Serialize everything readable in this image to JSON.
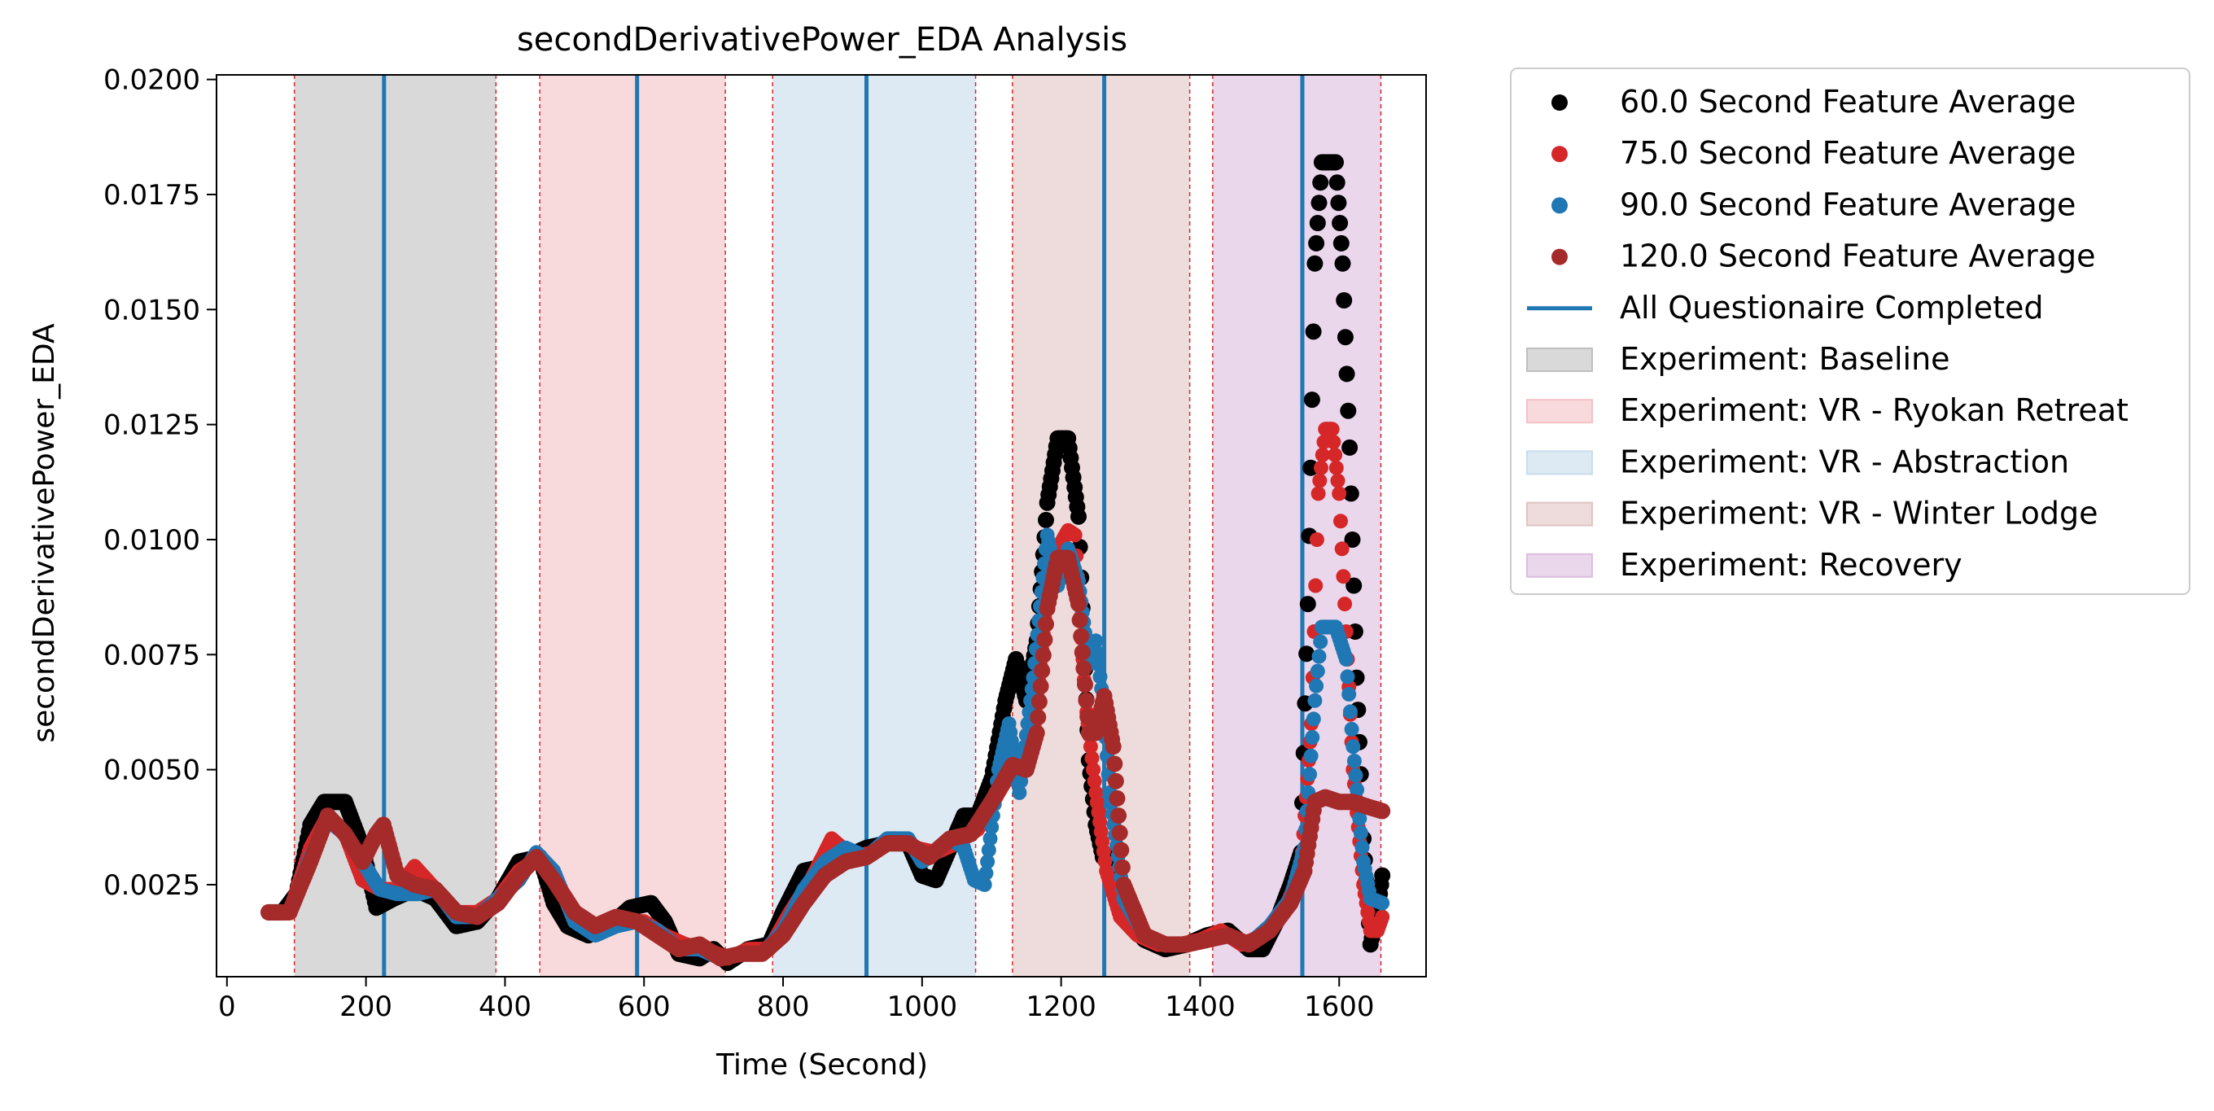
{
  "chart_data": {
    "type": "scatter",
    "title": "secondDerivativePower_EDA Analysis",
    "xlabel": "Time (Second)",
    "ylabel": "secondDerivativePower_EDA",
    "xlim": [
      -15,
      1725
    ],
    "ylim": [
      0.0005,
      0.0201
    ],
    "xticks": [
      0,
      200,
      400,
      600,
      800,
      1000,
      1200,
      1400,
      1600
    ],
    "xtick_labels": [
      "0",
      "200",
      "400",
      "600",
      "800",
      "1000",
      "1200",
      "1400",
      "1600"
    ],
    "yticks": [
      0.0025,
      0.005,
      0.0075,
      0.01,
      0.0125,
      0.015,
      0.0175,
      0.02
    ],
    "ytick_labels": [
      "0.0025",
      "0.0050",
      "0.0075",
      "0.0100",
      "0.0125",
      "0.0150",
      "0.0175",
      "0.0200"
    ],
    "grid": false,
    "legend_position": "outside-right",
    "phases": [
      {
        "name": "Experiment: Baseline",
        "start": 97,
        "end": 387,
        "color": "#bfbfbf"
      },
      {
        "name": "Experiment: VR - Ryokan Retreat",
        "start": 450,
        "end": 717,
        "color": "#f4c2c5"
      },
      {
        "name": "Experiment: VR - Abstraction",
        "start": 785,
        "end": 1077,
        "color": "#c7dced"
      },
      {
        "name": "Experiment: VR - Winter Lodge",
        "start": 1130,
        "end": 1385,
        "color": "#e2c3c3"
      },
      {
        "name": "Experiment: Recovery",
        "start": 1418,
        "end": 1660,
        "color": "#dcbde0"
      }
    ],
    "questionnaire": {
      "name": "All Questionaire Completed",
      "x": [
        226,
        590,
        920,
        1262,
        1547
      ],
      "color": "#1f77b4"
    },
    "series": [
      {
        "name": "60.0 Second Feature Average",
        "color": "#000000",
        "points": [
          [
            60,
            0.0019
          ],
          [
            80,
            0.0019
          ],
          [
            100,
            0.0023
          ],
          [
            120,
            0.0038
          ],
          [
            140,
            0.0043
          ],
          [
            170,
            0.0043
          ],
          [
            195,
            0.0033
          ],
          [
            215,
            0.002
          ],
          [
            240,
            0.0022
          ],
          [
            270,
            0.0024
          ],
          [
            300,
            0.0022
          ],
          [
            330,
            0.0016
          ],
          [
            360,
            0.0017
          ],
          [
            390,
            0.0022
          ],
          [
            420,
            0.003
          ],
          [
            450,
            0.0031
          ],
          [
            470,
            0.0021
          ],
          [
            490,
            0.0016
          ],
          [
            520,
            0.0014
          ],
          [
            550,
            0.0016
          ],
          [
            580,
            0.002
          ],
          [
            610,
            0.0021
          ],
          [
            630,
            0.0017
          ],
          [
            650,
            0.001
          ],
          [
            680,
            0.0009
          ],
          [
            700,
            0.0011
          ],
          [
            720,
            0.0008
          ],
          [
            750,
            0.0011
          ],
          [
            780,
            0.0012
          ],
          [
            800,
            0.0019
          ],
          [
            830,
            0.0028
          ],
          [
            860,
            0.0029
          ],
          [
            890,
            0.0031
          ],
          [
            920,
            0.0033
          ],
          [
            950,
            0.0034
          ],
          [
            980,
            0.0034
          ],
          [
            1000,
            0.0027
          ],
          [
            1020,
            0.0026
          ],
          [
            1040,
            0.0033
          ],
          [
            1060,
            0.004
          ],
          [
            1080,
            0.004
          ],
          [
            1100,
            0.0048
          ],
          [
            1120,
            0.0065
          ],
          [
            1135,
            0.0074
          ],
          [
            1150,
            0.0065
          ],
          [
            1165,
            0.0078
          ],
          [
            1180,
            0.0108
          ],
          [
            1195,
            0.0122
          ],
          [
            1210,
            0.0122
          ],
          [
            1225,
            0.0105
          ],
          [
            1240,
            0.0052
          ],
          [
            1250,
            0.0038
          ],
          [
            1260,
            0.0031
          ],
          [
            1270,
            0.0031
          ],
          [
            1290,
            0.0018
          ],
          [
            1320,
            0.0013
          ],
          [
            1350,
            0.0011
          ],
          [
            1380,
            0.0012
          ],
          [
            1410,
            0.0014
          ],
          [
            1440,
            0.0015
          ],
          [
            1470,
            0.0011
          ],
          [
            1490,
            0.0011
          ],
          [
            1510,
            0.0017
          ],
          [
            1530,
            0.0025
          ],
          [
            1545,
            0.0032
          ],
          [
            1555,
            0.0086
          ],
          [
            1565,
            0.016
          ],
          [
            1575,
            0.0182
          ],
          [
            1595,
            0.0182
          ],
          [
            1605,
            0.016
          ],
          [
            1615,
            0.012
          ],
          [
            1625,
            0.007
          ],
          [
            1635,
            0.0035
          ],
          [
            1645,
            0.0012
          ],
          [
            1655,
            0.0019
          ],
          [
            1662,
            0.0027
          ]
        ]
      },
      {
        "name": "75.0 Second Feature Average",
        "color": "#d62728",
        "points": [
          [
            60,
            0.0019
          ],
          [
            90,
            0.0019
          ],
          [
            120,
            0.0033
          ],
          [
            145,
            0.004
          ],
          [
            170,
            0.0036
          ],
          [
            195,
            0.0026
          ],
          [
            220,
            0.0024
          ],
          [
            245,
            0.0024
          ],
          [
            270,
            0.0029
          ],
          [
            300,
            0.0024
          ],
          [
            330,
            0.0019
          ],
          [
            360,
            0.0019
          ],
          [
            390,
            0.0022
          ],
          [
            420,
            0.0028
          ],
          [
            450,
            0.0031
          ],
          [
            480,
            0.0024
          ],
          [
            510,
            0.0017
          ],
          [
            540,
            0.0015
          ],
          [
            570,
            0.0017
          ],
          [
            600,
            0.0017
          ],
          [
            630,
            0.0014
          ],
          [
            660,
            0.0012
          ],
          [
            690,
            0.0011
          ],
          [
            720,
            0.0009
          ],
          [
            750,
            0.0011
          ],
          [
            780,
            0.0011
          ],
          [
            810,
            0.0019
          ],
          [
            840,
            0.0026
          ],
          [
            870,
            0.0035
          ],
          [
            900,
            0.0031
          ],
          [
            930,
            0.0032
          ],
          [
            960,
            0.0035
          ],
          [
            990,
            0.0033
          ],
          [
            1020,
            0.0032
          ],
          [
            1050,
            0.0034
          ],
          [
            1080,
            0.0037
          ],
          [
            1110,
            0.0045
          ],
          [
            1130,
            0.005
          ],
          [
            1150,
            0.0052
          ],
          [
            1165,
            0.0062
          ],
          [
            1180,
            0.009
          ],
          [
            1195,
            0.0098
          ],
          [
            1210,
            0.0102
          ],
          [
            1220,
            0.0101
          ],
          [
            1235,
            0.0065
          ],
          [
            1250,
            0.0045
          ],
          [
            1265,
            0.0028
          ],
          [
            1285,
            0.0018
          ],
          [
            1310,
            0.0014
          ],
          [
            1340,
            0.0012
          ],
          [
            1370,
            0.0012
          ],
          [
            1400,
            0.0013
          ],
          [
            1430,
            0.0015
          ],
          [
            1460,
            0.0012
          ],
          [
            1490,
            0.0014
          ],
          [
            1520,
            0.0019
          ],
          [
            1545,
            0.0028
          ],
          [
            1560,
            0.006
          ],
          [
            1570,
            0.011
          ],
          [
            1580,
            0.0124
          ],
          [
            1590,
            0.0124
          ],
          [
            1600,
            0.011
          ],
          [
            1610,
            0.008
          ],
          [
            1620,
            0.005
          ],
          [
            1635,
            0.0025
          ],
          [
            1645,
            0.0015
          ],
          [
            1655,
            0.0015
          ],
          [
            1662,
            0.0018
          ]
        ]
      },
      {
        "name": "90.0 Second Feature Average",
        "color": "#1f77b4",
        "points": [
          [
            60,
            0.0019
          ],
          [
            90,
            0.0019
          ],
          [
            120,
            0.0031
          ],
          [
            145,
            0.0039
          ],
          [
            170,
            0.0036
          ],
          [
            195,
            0.003
          ],
          [
            220,
            0.0024
          ],
          [
            245,
            0.0023
          ],
          [
            275,
            0.0023
          ],
          [
            300,
            0.0024
          ],
          [
            330,
            0.0018
          ],
          [
            360,
            0.0018
          ],
          [
            390,
            0.0022
          ],
          [
            420,
            0.0026
          ],
          [
            445,
            0.0032
          ],
          [
            470,
            0.0028
          ],
          [
            500,
            0.0017
          ],
          [
            530,
            0.0014
          ],
          [
            560,
            0.0016
          ],
          [
            590,
            0.0017
          ],
          [
            620,
            0.0015
          ],
          [
            650,
            0.0011
          ],
          [
            680,
            0.0011
          ],
          [
            710,
            0.0009
          ],
          [
            740,
            0.001
          ],
          [
            770,
            0.001
          ],
          [
            800,
            0.0015
          ],
          [
            830,
            0.0024
          ],
          [
            860,
            0.003
          ],
          [
            890,
            0.0033
          ],
          [
            920,
            0.0031
          ],
          [
            950,
            0.0035
          ],
          [
            980,
            0.0035
          ],
          [
            1000,
            0.003
          ],
          [
            1020,
            0.0032
          ],
          [
            1040,
            0.0035
          ],
          [
            1060,
            0.0033
          ],
          [
            1075,
            0.0026
          ],
          [
            1090,
            0.0025
          ],
          [
            1110,
            0.005
          ],
          [
            1125,
            0.006
          ],
          [
            1140,
            0.0045
          ],
          [
            1160,
            0.007
          ],
          [
            1180,
            0.0101
          ],
          [
            1195,
            0.009
          ],
          [
            1210,
            0.0098
          ],
          [
            1225,
            0.0091
          ],
          [
            1240,
            0.0073
          ],
          [
            1250,
            0.0078
          ],
          [
            1260,
            0.0065
          ],
          [
            1270,
            0.0045
          ],
          [
            1290,
            0.0022
          ],
          [
            1320,
            0.0014
          ],
          [
            1350,
            0.0012
          ],
          [
            1380,
            0.0012
          ],
          [
            1410,
            0.0013
          ],
          [
            1440,
            0.0014
          ],
          [
            1470,
            0.0012
          ],
          [
            1500,
            0.0016
          ],
          [
            1530,
            0.0022
          ],
          [
            1550,
            0.0033
          ],
          [
            1565,
            0.0065
          ],
          [
            1575,
            0.0081
          ],
          [
            1595,
            0.0081
          ],
          [
            1610,
            0.0074
          ],
          [
            1620,
            0.0055
          ],
          [
            1635,
            0.003
          ],
          [
            1645,
            0.0022
          ],
          [
            1662,
            0.0021
          ]
        ]
      },
      {
        "name": "120.0 Second Feature Average",
        "color": "#a52a2a",
        "points": [
          [
            60,
            0.0019
          ],
          [
            90,
            0.0019
          ],
          [
            120,
            0.003
          ],
          [
            145,
            0.004
          ],
          [
            170,
            0.0036
          ],
          [
            195,
            0.003
          ],
          [
            215,
            0.0036
          ],
          [
            225,
            0.0038
          ],
          [
            245,
            0.0027
          ],
          [
            270,
            0.0025
          ],
          [
            300,
            0.0024
          ],
          [
            330,
            0.0019
          ],
          [
            360,
            0.0018
          ],
          [
            390,
            0.0021
          ],
          [
            420,
            0.0027
          ],
          [
            445,
            0.0031
          ],
          [
            470,
            0.0026
          ],
          [
            500,
            0.0019
          ],
          [
            530,
            0.0016
          ],
          [
            560,
            0.0018
          ],
          [
            590,
            0.0017
          ],
          [
            620,
            0.0014
          ],
          [
            650,
            0.0011
          ],
          [
            680,
            0.0012
          ],
          [
            710,
            0.0009
          ],
          [
            740,
            0.001
          ],
          [
            770,
            0.001
          ],
          [
            800,
            0.0014
          ],
          [
            830,
            0.0021
          ],
          [
            860,
            0.0027
          ],
          [
            890,
            0.003
          ],
          [
            920,
            0.0031
          ],
          [
            950,
            0.0034
          ],
          [
            980,
            0.0034
          ],
          [
            1010,
            0.0031
          ],
          [
            1040,
            0.0035
          ],
          [
            1070,
            0.0036
          ],
          [
            1100,
            0.0043
          ],
          [
            1130,
            0.0051
          ],
          [
            1150,
            0.005
          ],
          [
            1165,
            0.0058
          ],
          [
            1180,
            0.0085
          ],
          [
            1195,
            0.0096
          ],
          [
            1210,
            0.0096
          ],
          [
            1225,
            0.0086
          ],
          [
            1240,
            0.0058
          ],
          [
            1250,
            0.0058
          ],
          [
            1262,
            0.0066
          ],
          [
            1275,
            0.0055
          ],
          [
            1290,
            0.0025
          ],
          [
            1320,
            0.0014
          ],
          [
            1350,
            0.0012
          ],
          [
            1380,
            0.0012
          ],
          [
            1410,
            0.0013
          ],
          [
            1440,
            0.0014
          ],
          [
            1470,
            0.0012
          ],
          [
            1500,
            0.0015
          ],
          [
            1530,
            0.0021
          ],
          [
            1550,
            0.0028
          ],
          [
            1565,
            0.0043
          ],
          [
            1580,
            0.0044
          ],
          [
            1600,
            0.0043
          ],
          [
            1620,
            0.0043
          ],
          [
            1640,
            0.0042
          ],
          [
            1662,
            0.0041
          ]
        ]
      }
    ]
  }
}
